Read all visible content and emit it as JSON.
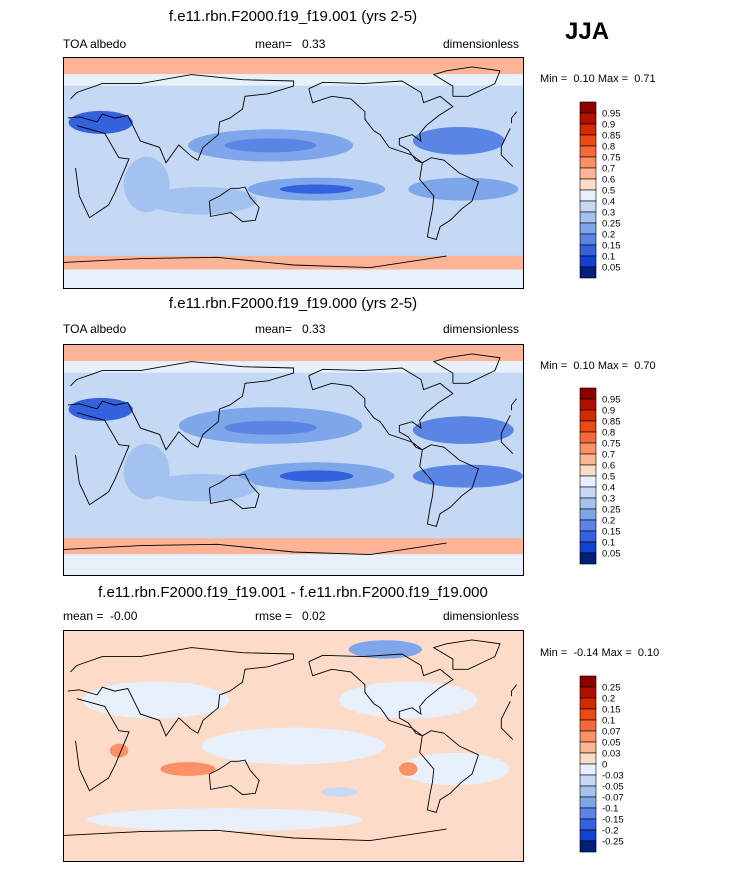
{
  "season": "JJA",
  "chart_data": [
    {
      "type": "heatmap",
      "title": "f.e11.rbn.F2000.f19_f19.001 (yrs 2-5)",
      "variable": "TOA albedo",
      "mean_label": "mean=",
      "mean_value": "0.33",
      "units": "dimensionless",
      "min_label": "Min =",
      "min_value": "0.10",
      "max_label": "Max =",
      "max_value": "0.71",
      "colorbar_levels": [
        "0.95",
        "0.9",
        "0.85",
        "0.8",
        "0.75",
        "0.7",
        "0.6",
        "0.5",
        "0.4",
        "0.3",
        "0.25",
        "0.2",
        "0.15",
        "0.1",
        "0.05"
      ],
      "colorbar_colors": [
        "#8b0000",
        "#b30f00",
        "#d42a00",
        "#ec4a10",
        "#f56a36",
        "#f99066",
        "#fbb596",
        "#fcdcc8",
        "#e8f0fc",
        "#c5d9f5",
        "#a3c2ef",
        "#7ea6ea",
        "#5a85e4",
        "#3462de",
        "#1340d0",
        "#00207a"
      ]
    },
    {
      "type": "heatmap",
      "title": "f.e11.rbn.F2000.f19_f19.000 (yrs 2-5)",
      "variable": "TOA albedo",
      "mean_label": "mean=",
      "mean_value": "0.33",
      "units": "dimensionless",
      "min_label": "Min =",
      "min_value": "0.10",
      "max_label": "Max =",
      "max_value": "0.70",
      "colorbar_levels": [
        "0.95",
        "0.9",
        "0.85",
        "0.8",
        "0.75",
        "0.7",
        "0.6",
        "0.5",
        "0.4",
        "0.3",
        "0.25",
        "0.2",
        "0.15",
        "0.1",
        "0.05"
      ],
      "colorbar_colors": [
        "#8b0000",
        "#b30f00",
        "#d42a00",
        "#ec4a10",
        "#f56a36",
        "#f99066",
        "#fbb596",
        "#fcdcc8",
        "#e8f0fc",
        "#c5d9f5",
        "#a3c2ef",
        "#7ea6ea",
        "#5a85e4",
        "#3462de",
        "#1340d0",
        "#00207a"
      ]
    },
    {
      "type": "heatmap",
      "title": "f.e11.rbn.F2000.f19_f19.001 - f.e11.rbn.F2000.f19_f19.000",
      "mean_label": "mean =",
      "mean_value": "-0.00",
      "rmse_label": "rmse =",
      "rmse_value": "0.02",
      "units": "dimensionless",
      "min_label": "Min =",
      "min_value": "-0.14",
      "max_label": "Max =",
      "max_value": "0.10",
      "colorbar_levels": [
        "0.25",
        "0.2",
        "0.15",
        "0.1",
        "0.07",
        "0.05",
        "0.03",
        "0",
        "-0.03",
        "-0.05",
        "-0.07",
        "-0.1",
        "-0.15",
        "-0.2",
        "-0.25"
      ],
      "colorbar_colors": [
        "#8b0000",
        "#b30f00",
        "#d42a00",
        "#ec4a10",
        "#f56a36",
        "#f99066",
        "#fbb596",
        "#fcdcc8",
        "#e8f0fc",
        "#c5d9f5",
        "#a3c2ef",
        "#7ea6ea",
        "#5a85e4",
        "#3462de",
        "#1340d0",
        "#00207a"
      ]
    }
  ]
}
